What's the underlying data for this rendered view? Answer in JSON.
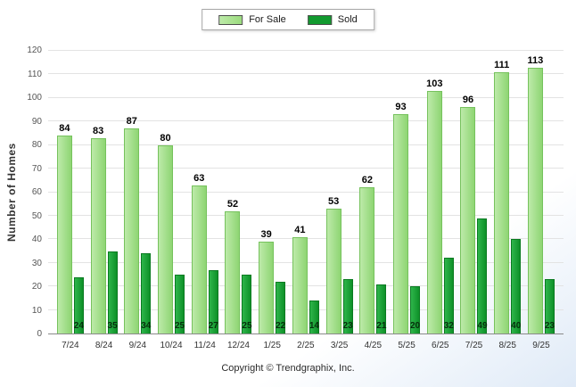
{
  "chart_data": {
    "type": "bar",
    "categories": [
      "7/24",
      "8/24",
      "9/24",
      "10/24",
      "11/24",
      "12/24",
      "1/25",
      "2/25",
      "3/25",
      "4/25",
      "5/25",
      "6/25",
      "7/25",
      "8/25",
      "9/25"
    ],
    "series": [
      {
        "name": "For Sale",
        "color": "#9BDB7E",
        "values": [
          84,
          83,
          87,
          80,
          63,
          52,
          39,
          41,
          53,
          62,
          93,
          103,
          96,
          111,
          113
        ]
      },
      {
        "name": "Sold",
        "color": "#129A2F",
        "values": [
          24,
          35,
          34,
          25,
          27,
          25,
          22,
          14,
          23,
          21,
          20,
          32,
          49,
          40,
          23
        ]
      }
    ],
    "title": "",
    "xlabel": "",
    "ylabel": "Number of Homes",
    "ylim": [
      0,
      120
    ],
    "ytick_step": 10,
    "grid": true,
    "legend_position": "top-center"
  },
  "footer": {
    "copyright": "Copyright © Trendgraphix, Inc."
  }
}
